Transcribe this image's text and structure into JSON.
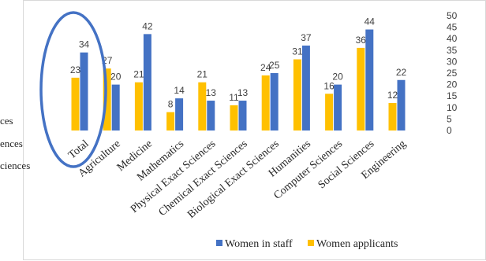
{
  "chart_data": {
    "type": "bar",
    "categories": [
      "Total",
      "Agriculture",
      "Medicine",
      "Mathematics",
      "Physical Exact Sciences",
      "Chemical Exact Sciences",
      "Biological Exact Sciences",
      "Humanities",
      "Computer Sciences",
      "Social Sciences",
      "Engineering"
    ],
    "series": [
      {
        "name": "Women applicants",
        "color": "#ffc000",
        "values": [
          23,
          27,
          21,
          8,
          21,
          11,
          24,
          31,
          16,
          36,
          12
        ]
      },
      {
        "name": "Women in staff",
        "color": "#4472c4",
        "values": [
          34,
          20,
          42,
          14,
          13,
          13,
          25,
          37,
          20,
          44,
          22
        ]
      }
    ],
    "ylim": [
      0,
      50
    ],
    "yticks": [
      0,
      5,
      10,
      15,
      20,
      25,
      30,
      35,
      40,
      45,
      50
    ],
    "y_axis_side": "right",
    "grid": false,
    "legend_position": "bottom-right",
    "legend_order": [
      "Women in staff",
      "Women applicants"
    ],
    "annotation": {
      "shape": "ellipse",
      "color": "#4472c4",
      "highlights": "Total"
    }
  },
  "left_fragments": [
    "ces",
    "ences",
    "ciences"
  ]
}
